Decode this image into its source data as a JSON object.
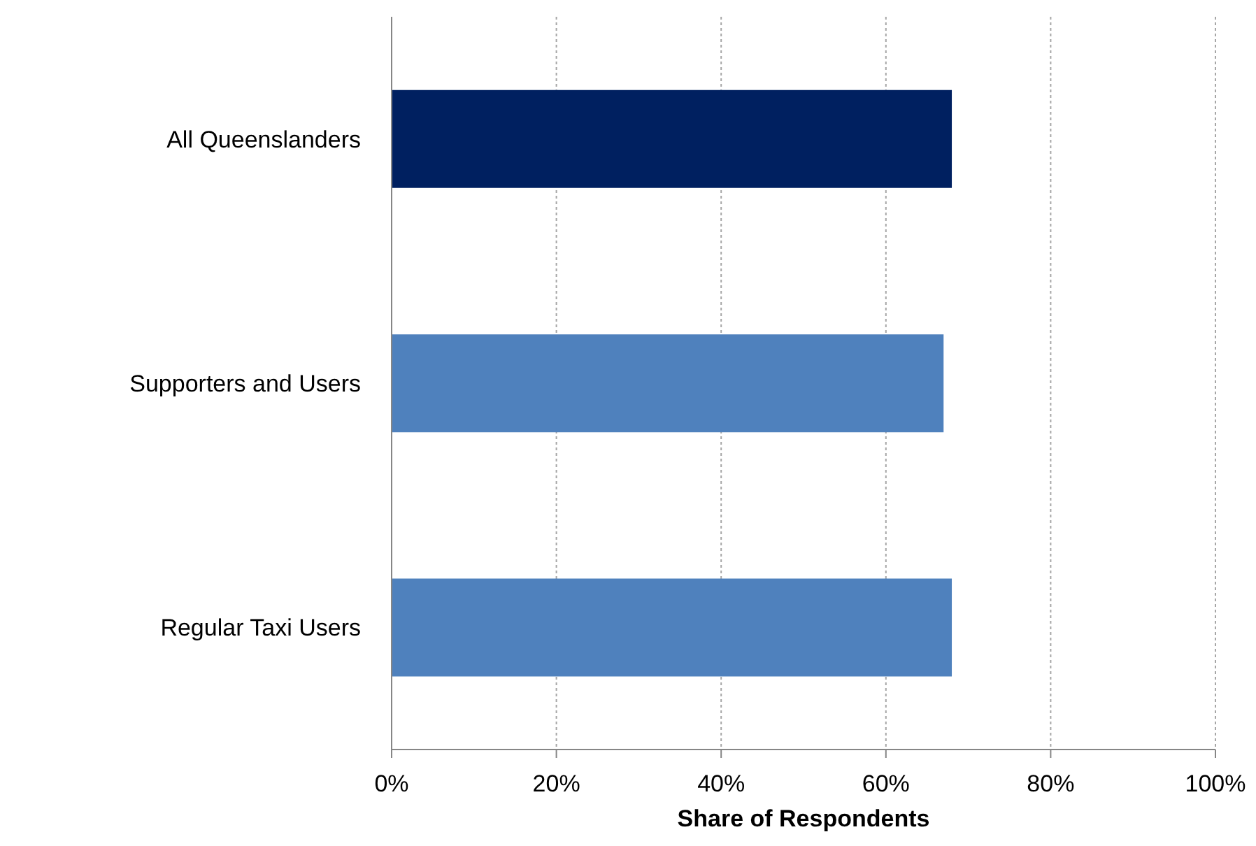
{
  "chart_data": {
    "type": "bar",
    "orientation": "horizontal",
    "xlabel": "Share of Respondents",
    "categories": [
      "All Queenslanders",
      "Supporters and Users",
      "Regular Taxi Users"
    ],
    "values": [
      68,
      67,
      68
    ],
    "colors": [
      "#002060",
      "#4f81bd",
      "#4f81bd"
    ],
    "xlim": [
      0,
      100
    ],
    "xticks": [
      {
        "value": 0,
        "label": "0%"
      },
      {
        "value": 20,
        "label": "20%"
      },
      {
        "value": 40,
        "label": "40%"
      },
      {
        "value": 60,
        "label": "60%"
      },
      {
        "value": 80,
        "label": "80%"
      },
      {
        "value": 100,
        "label": "100%"
      }
    ],
    "grid": "x"
  }
}
